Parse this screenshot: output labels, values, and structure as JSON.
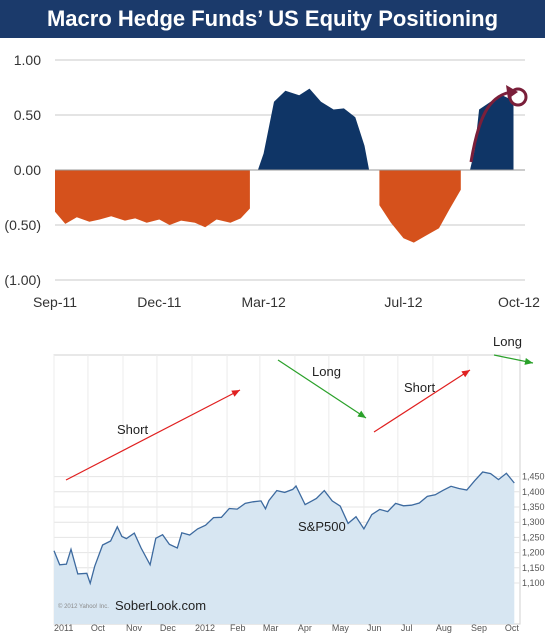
{
  "title": "Macro Hedge Funds’ US Equity Positioning",
  "colors": {
    "title_bg": "#1b3a6b",
    "positive": "#0f3566",
    "negative": "#d5511c",
    "circle": "#7a1f3a",
    "sp_fill": "#d7e6f2",
    "sp_line": "#3d6a9f",
    "arrow_red": "#e02020",
    "arrow_green": "#2aa12a"
  },
  "chart_data": [
    {
      "type": "area",
      "ylim": [
        -1.0,
        1.0
      ],
      "yticks": [
        1.0,
        0.5,
        0.0,
        -0.5,
        -1.0
      ],
      "ytick_labels": [
        "1.00",
        "0.50",
        "0.00",
        "(0.50)",
        "(1.00)"
      ],
      "xtick_labels": [
        "Sep-11",
        "Dec-11",
        "Mar-12",
        "Jul-12",
        "Oct-12"
      ],
      "xtick_dates": [
        "2011-09-01",
        "2011-12-01",
        "2012-03-01",
        "2012-07-01",
        "2012-10-01"
      ],
      "grid": true,
      "x": [
        "2011-09-01",
        "2011-09-10",
        "2011-09-20",
        "2011-10-01",
        "2011-10-10",
        "2011-10-20",
        "2011-11-01",
        "2011-11-10",
        "2011-11-20",
        "2011-12-01",
        "2011-12-10",
        "2011-12-20",
        "2012-01-01",
        "2012-01-10",
        "2012-01-20",
        "2012-02-01",
        "2012-02-10",
        "2012-02-18",
        "2012-02-25",
        "2012-03-01",
        "2012-03-10",
        "2012-03-20",
        "2012-04-01",
        "2012-04-10",
        "2012-04-20",
        "2012-05-01",
        "2012-05-10",
        "2012-05-20",
        "2012-05-28",
        "2012-06-01",
        "2012-06-10",
        "2012-06-20",
        "2012-07-01",
        "2012-07-10",
        "2012-07-20",
        "2012-08-01",
        "2012-08-10",
        "2012-08-20",
        "2012-08-28",
        "2012-09-01",
        "2012-09-05",
        "2012-09-15",
        "2012-09-25",
        "2012-10-01",
        "2012-10-05"
      ],
      "values": [
        -0.38,
        -0.49,
        -0.43,
        -0.47,
        -0.45,
        -0.42,
        -0.46,
        -0.44,
        -0.48,
        -0.45,
        -0.5,
        -0.46,
        -0.48,
        -0.52,
        -0.45,
        -0.48,
        -0.44,
        -0.35,
        0.0,
        0.15,
        0.62,
        0.72,
        0.68,
        0.74,
        0.62,
        0.55,
        0.56,
        0.48,
        0.22,
        0.0,
        -0.32,
        -0.48,
        -0.62,
        -0.66,
        -0.6,
        -0.53,
        -0.36,
        -0.18,
        0.0,
        0.18,
        0.55,
        0.62,
        0.68,
        0.65,
        0.6
      ]
    },
    {
      "type": "area",
      "title": "S&P500",
      "yticks": [
        1100,
        1150,
        1200,
        1250,
        1300,
        1350,
        1400,
        1450
      ],
      "ytick_labels": [
        "1,100",
        "1,150",
        "1,200",
        "1,250",
        "1,300",
        "1,350",
        "1,400",
        "1,450"
      ],
      "xtick_labels": [
        "2011",
        "Oct",
        "Nov",
        "Dec",
        "2012",
        "Feb",
        "Mar",
        "Apr",
        "May",
        "Jun",
        "Jul",
        "Aug",
        "Sep",
        "Oct"
      ],
      "xtick_dates": [
        "2011-09-01",
        "2011-10-01",
        "2011-11-01",
        "2011-12-01",
        "2012-01-01",
        "2012-02-01",
        "2012-03-01",
        "2012-04-01",
        "2012-05-01",
        "2012-06-01",
        "2012-07-01",
        "2012-08-01",
        "2012-09-01",
        "2012-10-01"
      ],
      "grid": true,
      "x": [
        "2011-09-01",
        "2011-09-06",
        "2011-09-12",
        "2011-09-16",
        "2011-09-22",
        "2011-09-30",
        "2011-10-03",
        "2011-10-07",
        "2011-10-14",
        "2011-10-21",
        "2011-10-27",
        "2011-10-31",
        "2011-11-04",
        "2011-11-11",
        "2011-11-17",
        "2011-11-25",
        "2011-11-30",
        "2011-12-06",
        "2011-12-12",
        "2011-12-19",
        "2011-12-23",
        "2011-12-30",
        "2012-01-06",
        "2012-01-13",
        "2012-01-20",
        "2012-01-27",
        "2012-02-03",
        "2012-02-10",
        "2012-02-17",
        "2012-02-24",
        "2012-03-02",
        "2012-03-06",
        "2012-03-09",
        "2012-03-16",
        "2012-03-23",
        "2012-03-30",
        "2012-04-02",
        "2012-04-10",
        "2012-04-16",
        "2012-04-20",
        "2012-04-27",
        "2012-05-04",
        "2012-05-11",
        "2012-05-18",
        "2012-05-25",
        "2012-06-01",
        "2012-06-08",
        "2012-06-15",
        "2012-06-22",
        "2012-06-29",
        "2012-07-06",
        "2012-07-13",
        "2012-07-20",
        "2012-07-27",
        "2012-08-03",
        "2012-08-10",
        "2012-08-17",
        "2012-08-24",
        "2012-08-31",
        "2012-09-07",
        "2012-09-14",
        "2012-09-21",
        "2012-09-28",
        "2012-10-05",
        "2012-10-12"
      ],
      "values": [
        1206,
        1160,
        1162,
        1211,
        1130,
        1132,
        1099,
        1155,
        1225,
        1238,
        1285,
        1253,
        1246,
        1264,
        1215,
        1160,
        1247,
        1259,
        1227,
        1215,
        1265,
        1258,
        1278,
        1290,
        1315,
        1316,
        1345,
        1343,
        1362,
        1367,
        1370,
        1344,
        1371,
        1404,
        1398,
        1408,
        1419,
        1358,
        1370,
        1378,
        1404,
        1370,
        1353,
        1296,
        1318,
        1278,
        1325,
        1342,
        1335,
        1362,
        1354,
        1356,
        1363,
        1385,
        1390,
        1405,
        1418,
        1411,
        1406,
        1437,
        1465,
        1460,
        1440,
        1461,
        1429
      ]
    }
  ],
  "annotations": {
    "short1": "Short",
    "long1": "Long",
    "short2": "Short",
    "long2": "Long"
  },
  "watermark": "© 2012 Yahoo! Inc.",
  "brand": "SoberLook.com"
}
